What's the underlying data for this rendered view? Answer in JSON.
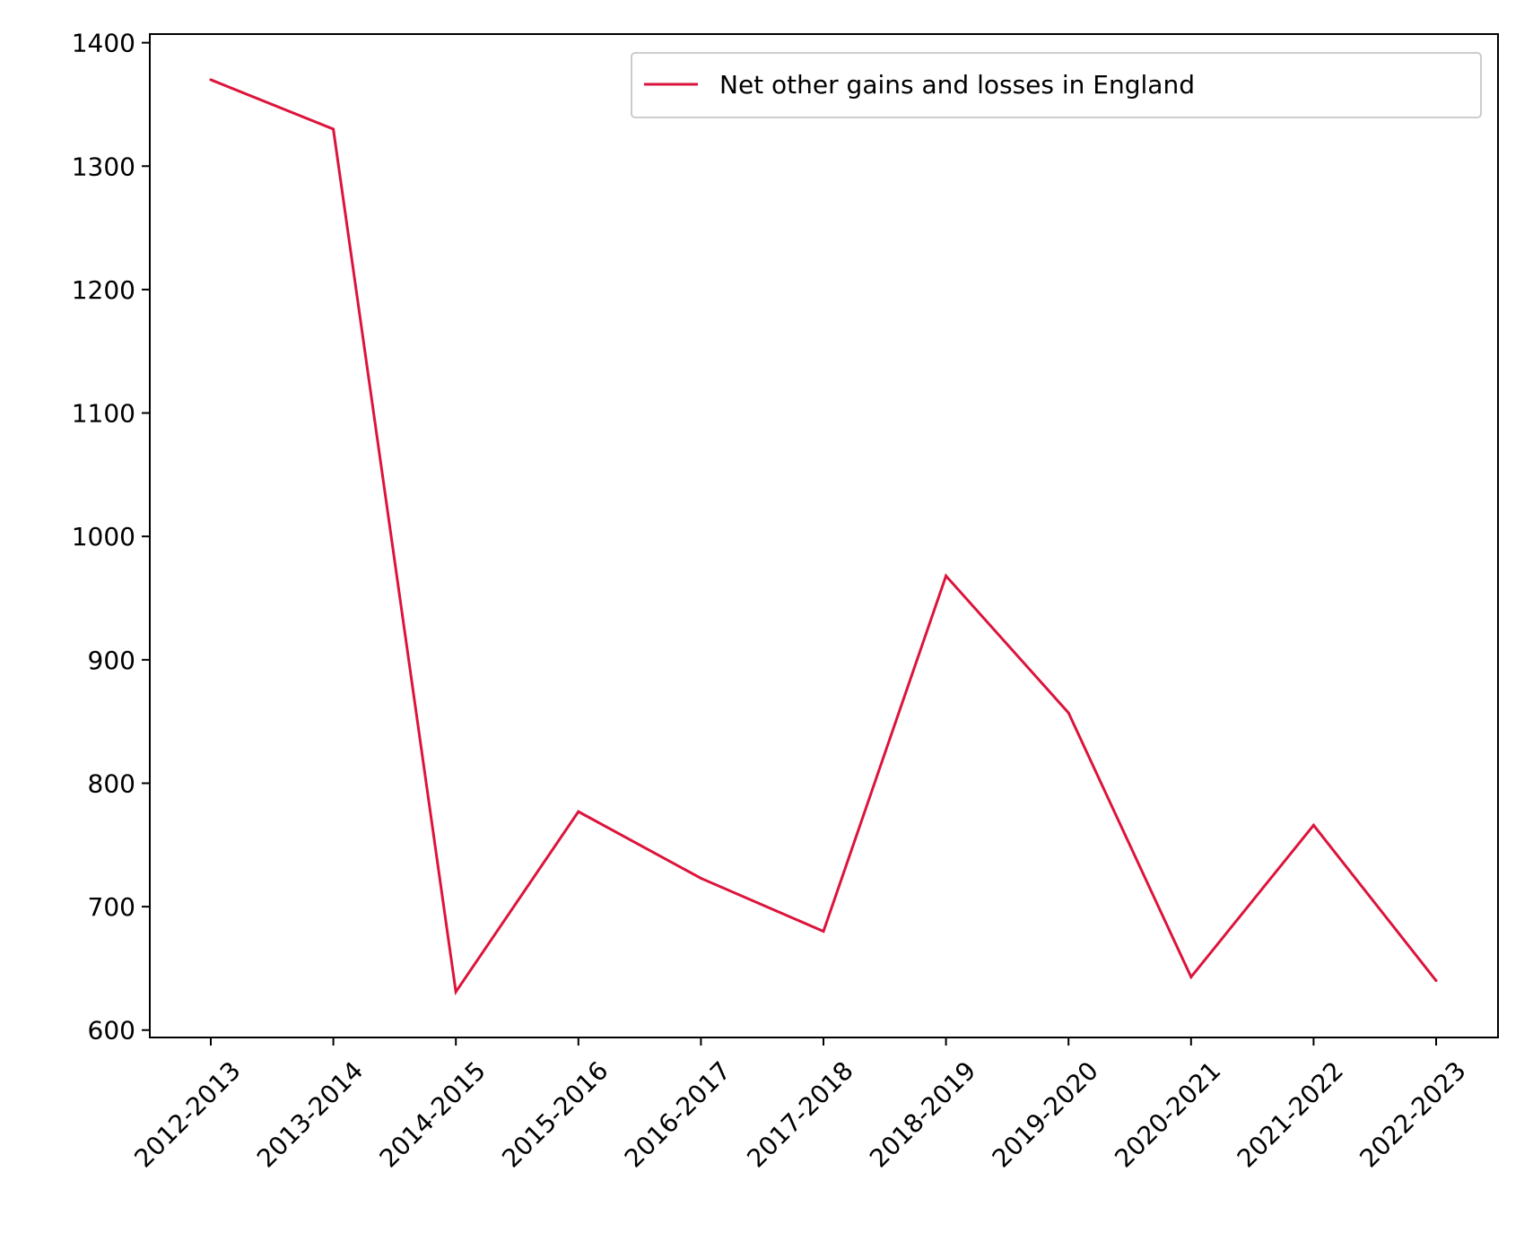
{
  "chart_data": {
    "type": "line",
    "title": "",
    "xlabel": "",
    "ylabel": "",
    "categories": [
      "2012-2013",
      "2013-2014",
      "2014-2015",
      "2015-2016",
      "2016-2017",
      "2017-2018",
      "2018-2019",
      "2019-2020",
      "2020-2021",
      "2021-2022",
      "2022-2023"
    ],
    "series": [
      {
        "name": "Net other gains and losses in England",
        "color": "#dc143c",
        "values": [
          1370,
          1330,
          631,
          777,
          723,
          680,
          968,
          857,
          643,
          766,
          640
        ]
      }
    ],
    "ylim": [
      594,
      1407
    ],
    "yticks": [
      600,
      700,
      800,
      900,
      1000,
      1100,
      1200,
      1300,
      1400
    ],
    "grid": false,
    "legend_position": "top-right"
  }
}
